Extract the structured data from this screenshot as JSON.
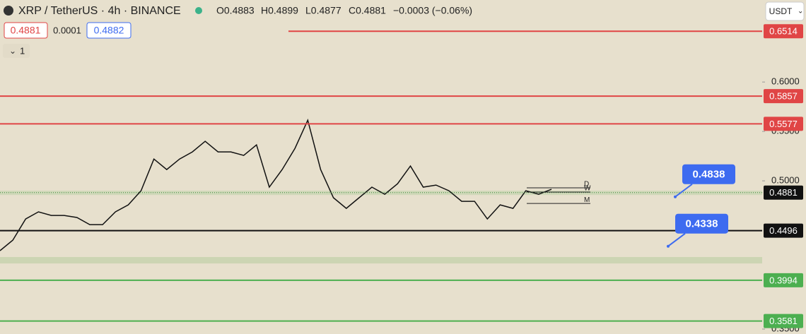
{
  "header": {
    "symbol": "XRP / TetherUS · 4h · BINANCE",
    "open": "O0.4883",
    "high": "H0.4899",
    "low": "L0.4877",
    "close": "C0.4881",
    "change": "−0.0003 (−0.06%)",
    "bid": "0.4881",
    "spread": "0.0001",
    "ask": "0.4882",
    "indicators": "1",
    "currency": "USDT"
  },
  "chart_data": {
    "type": "line",
    "ylim": [
      0.345,
      0.683
    ],
    "yticks": [
      {
        "value": 0.6,
        "label": "0.6000"
      },
      {
        "value": 0.55,
        "label": "0.5500"
      },
      {
        "value": 0.5,
        "label": "0.5000"
      },
      {
        "value": 0.35,
        "label": "0.3500"
      }
    ],
    "price_path": {
      "color": "#111111",
      "values": [
        0.4293,
        0.44,
        0.4614,
        0.4686,
        0.465,
        0.465,
        0.4629,
        0.4557,
        0.4557,
        0.4686,
        0.4757,
        0.49,
        0.5221,
        0.5114,
        0.5221,
        0.5293,
        0.54,
        0.5293,
        0.5293,
        0.5257,
        0.5364,
        0.4936,
        0.5114,
        0.5329,
        0.5614,
        0.5114,
        0.4829,
        0.4721,
        0.4829,
        0.4936,
        0.4864,
        0.4971,
        0.515,
        0.4936,
        0.4957,
        0.49,
        0.4793,
        0.4793,
        0.4614,
        0.4757,
        0.4721,
        0.49,
        0.4864,
        0.4914
      ]
    },
    "levels": [
      {
        "value": 0.6514,
        "color": "#e04545",
        "style": "solid"
      },
      {
        "value": 0.5857,
        "color": "#e04545",
        "style": "solid"
      },
      {
        "value": 0.5577,
        "color": "#e04545",
        "style": "solid"
      },
      {
        "value": 0.4881,
        "color": "#111111",
        "style": "dotted"
      },
      {
        "value": 0.4496,
        "color": "#111111",
        "style": "solid"
      },
      {
        "value": 0.3994,
        "color": "#4caf50",
        "style": "solid"
      },
      {
        "value": 0.3581,
        "color": "#4caf50",
        "style": "solid"
      }
    ],
    "zones": [
      {
        "from": 0.4857,
        "to": 0.49,
        "color": "#cbd6b4"
      },
      {
        "from": 0.4164,
        "to": 0.4229,
        "color": "#c5d2ad"
      }
    ],
    "period_levels": [
      {
        "label": "D",
        "value": 0.4929
      },
      {
        "label": "W",
        "value": 0.4886
      },
      {
        "label": "M",
        "value": 0.4771
      }
    ],
    "callouts": [
      {
        "value": 0.4838,
        "color": "#3d6bf0"
      },
      {
        "value": 0.4338,
        "color": "#3d6bf0"
      }
    ]
  }
}
